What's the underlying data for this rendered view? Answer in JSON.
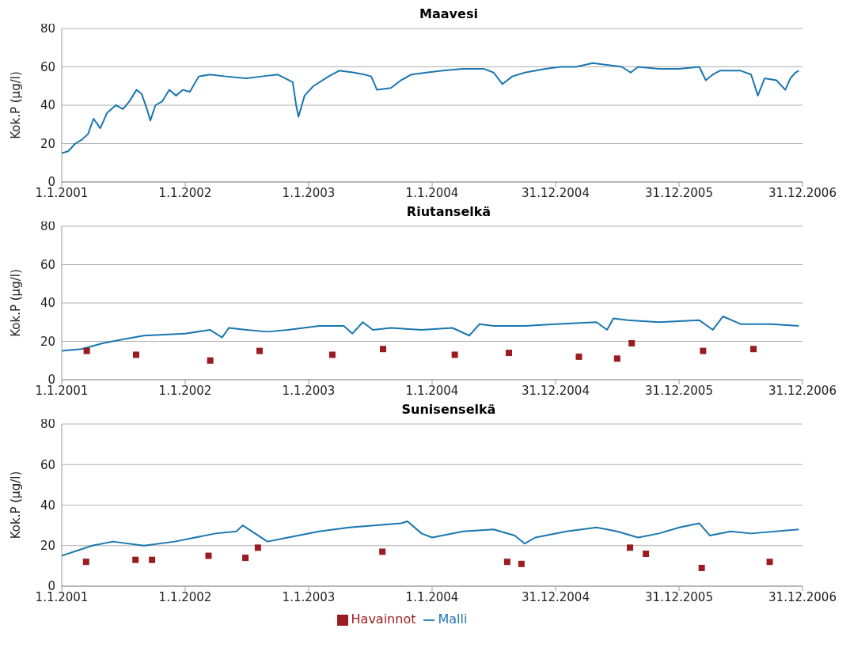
{
  "chart_data": [
    {
      "type": "line",
      "title": "Maavesi",
      "ylabel": "Kok.P (µg/l)",
      "xlim": [
        "2001-01-01",
        "2006-12-31"
      ],
      "xticks": [
        {
          "value": "2001-01-01",
          "label": "1.1.2001"
        },
        {
          "value": "2002-01-01",
          "label": "1.1.2002"
        },
        {
          "value": "2003-01-01",
          "label": "1.1.2003"
        },
        {
          "value": "2004-01-01",
          "label": "1.1.2004"
        },
        {
          "value": "2004-12-31",
          "label": "31.12.2004"
        },
        {
          "value": "2005-12-31",
          "label": "31.12.2005"
        },
        {
          "value": "2006-12-31",
          "label": "31.12.2006"
        }
      ],
      "ylim": [
        0,
        80
      ],
      "yticks": [
        0,
        20,
        40,
        60,
        80
      ],
      "grid": "y",
      "series": [
        {
          "color": "#1a76b0",
          "marker": "none",
          "x": [
            "2001-01-01",
            "2001-01-20",
            "2001-02-10",
            "2001-03-01",
            "2001-03-20",
            "2001-04-05",
            "2001-04-25",
            "2001-05-15",
            "2001-06-10",
            "2001-07-01",
            "2001-07-20",
            "2001-08-10",
            "2001-08-25",
            "2001-09-10",
            "2001-09-20",
            "2001-10-05",
            "2001-10-25",
            "2001-11-15",
            "2001-12-05",
            "2001-12-25",
            "2002-01-15",
            "2002-02-10",
            "2002-03-15",
            "2002-05-01",
            "2002-07-01",
            "2002-08-15",
            "2002-10-01",
            "2002-11-15",
            "2002-11-25",
            "2002-12-02",
            "2002-12-20",
            "2003-01-15",
            "2003-03-01",
            "2003-04-01",
            "2003-05-15",
            "2003-06-15",
            "2003-07-05",
            "2003-07-22",
            "2003-09-01",
            "2003-10-01",
            "2003-11-01",
            "2003-12-15",
            "2004-02-01",
            "2004-04-01",
            "2004-06-01",
            "2004-07-01",
            "2004-07-27",
            "2004-08-25",
            "2004-10-01",
            "2004-12-01",
            "2005-01-15",
            "2005-03-01",
            "2005-04-20",
            "2005-06-01",
            "2005-07-15",
            "2005-08-10",
            "2005-09-01",
            "2005-11-01",
            "2006-01-01",
            "2006-03-01",
            "2006-03-20",
            "2006-04-10",
            "2006-05-01",
            "2006-07-01",
            "2006-08-01",
            "2006-08-21",
            "2006-09-10",
            "2006-10-15",
            "2006-11-10",
            "2006-11-25",
            "2006-12-10",
            "2006-12-20"
          ],
          "values": [
            15,
            16,
            20,
            22,
            25,
            33,
            28,
            36,
            40,
            38,
            42,
            48,
            46,
            38,
            32,
            40,
            42,
            48,
            45,
            48,
            47,
            55,
            56,
            55,
            54,
            55,
            56,
            52,
            40,
            34,
            45,
            50,
            55,
            58,
            57,
            56,
            55,
            48,
            49,
            53,
            56,
            57,
            58,
            59,
            59,
            57,
            51,
            55,
            57,
            59,
            60,
            60,
            62,
            61,
            60,
            57,
            60,
            59,
            59,
            60,
            53,
            56,
            58,
            58,
            56,
            45,
            54,
            53,
            48,
            54,
            57,
            58
          ]
        }
      ]
    },
    {
      "type": "line",
      "title": "Riutanselkä",
      "ylabel": "Kok.P (µg/l)",
      "xlim": [
        "2001-01-01",
        "2006-12-31"
      ],
      "xticks": [
        {
          "value": "2001-01-01",
          "label": "1.1.2001"
        },
        {
          "value": "2002-01-01",
          "label": "1.1.2002"
        },
        {
          "value": "2003-01-01",
          "label": "1.1.2003"
        },
        {
          "value": "2004-01-01",
          "label": "1.1.2004"
        },
        {
          "value": "2004-12-31",
          "label": "31.12.2004"
        },
        {
          "value": "2005-12-31",
          "label": "31.12.2005"
        },
        {
          "value": "2006-12-31",
          "label": "31.12.2006"
        }
      ],
      "ylim": [
        0,
        80
      ],
      "yticks": [
        0,
        20,
        40,
        60,
        80
      ],
      "grid": "y",
      "series": [
        {
          "color": "#1a76b0",
          "marker": "none",
          "x": [
            "2001-01-01",
            "2001-03-01",
            "2001-05-01",
            "2001-07-01",
            "2001-09-01",
            "2002-01-01",
            "2002-03-15",
            "2002-04-20",
            "2002-05-10",
            "2002-07-01",
            "2002-09-01",
            "2002-11-01",
            "2003-02-01",
            "2003-04-15",
            "2003-05-10",
            "2003-06-10",
            "2003-07-10",
            "2003-09-01",
            "2003-12-01",
            "2004-03-01",
            "2004-04-20",
            "2004-05-20",
            "2004-07-01",
            "2004-10-01",
            "2005-01-01",
            "2005-05-01",
            "2005-06-01",
            "2005-06-20",
            "2005-08-01",
            "2005-11-01",
            "2006-03-01",
            "2006-04-10",
            "2006-05-10",
            "2006-07-01",
            "2006-10-01",
            "2006-12-20"
          ],
          "values": [
            15,
            16,
            19,
            21,
            23,
            24,
            26,
            22,
            27,
            26,
            25,
            26,
            28,
            28,
            24,
            30,
            26,
            27,
            26,
            27,
            23,
            29,
            28,
            28,
            29,
            30,
            26,
            32,
            31,
            30,
            31,
            26,
            33,
            29,
            29,
            28
          ]
        },
        {
          "type": "scatter",
          "color": "#9b1c20",
          "marker": "square",
          "x": [
            "2001-03-16",
            "2001-08-09",
            "2002-03-16",
            "2002-08-09",
            "2003-03-12",
            "2003-08-09",
            "2004-03-08",
            "2004-08-15",
            "2005-03-10",
            "2005-07-01",
            "2005-08-13",
            "2006-03-12",
            "2006-08-08"
          ],
          "values": [
            15,
            13,
            10,
            15,
            13,
            16,
            13,
            14,
            12,
            11,
            19,
            15,
            16
          ]
        }
      ]
    },
    {
      "type": "line",
      "title": "Sunisenselkä",
      "ylabel": "Kok.P (µg/l)",
      "xlim": [
        "2001-01-01",
        "2006-12-31"
      ],
      "xticks": [
        {
          "value": "2001-01-01",
          "label": "1.1.2001"
        },
        {
          "value": "2002-01-01",
          "label": "1.1.2002"
        },
        {
          "value": "2003-01-01",
          "label": "1.1.2003"
        },
        {
          "value": "2004-01-01",
          "label": "1.1.2004"
        },
        {
          "value": "2004-12-31",
          "label": "31.12.2004"
        },
        {
          "value": "2005-12-31",
          "label": "31.12.2005"
        },
        {
          "value": "2006-12-31",
          "label": "31.12.2006"
        }
      ],
      "ylim": [
        0,
        80
      ],
      "yticks": [
        0,
        20,
        40,
        60,
        80
      ],
      "grid": "y",
      "legend": "bottom",
      "series": [
        {
          "name": "Malli",
          "color": "#1a76b0",
          "marker": "none",
          "x": [
            "2001-01-01",
            "2001-04-01",
            "2001-06-01",
            "2001-09-01",
            "2001-12-01",
            "2002-04-01",
            "2002-06-01",
            "2002-06-20",
            "2002-09-01",
            "2002-11-01",
            "2003-02-01",
            "2003-05-01",
            "2003-10-01",
            "2003-10-20",
            "2003-12-01",
            "2004-01-01",
            "2004-04-01",
            "2004-07-01",
            "2004-09-01",
            "2004-10-01",
            "2004-11-01",
            "2005-02-01",
            "2005-05-01",
            "2005-07-01",
            "2005-09-01",
            "2005-11-01",
            "2006-01-01",
            "2006-03-01",
            "2006-04-01",
            "2006-06-01",
            "2006-08-01",
            "2006-12-20"
          ],
          "values": [
            15,
            20,
            22,
            20,
            22,
            26,
            27,
            30,
            22,
            24,
            27,
            29,
            31,
            32,
            26,
            24,
            27,
            28,
            25,
            21,
            24,
            27,
            29,
            27,
            24,
            26,
            29,
            31,
            25,
            27,
            26,
            28
          ]
        },
        {
          "type": "scatter",
          "name": "Havainnot",
          "color": "#9b1c20",
          "marker": "square",
          "x": [
            "2001-03-14",
            "2001-08-07",
            "2001-09-25",
            "2002-03-11",
            "2002-06-28",
            "2002-08-04",
            "2003-08-07",
            "2004-08-10",
            "2004-09-21",
            "2005-08-08",
            "2005-09-24",
            "2006-03-08",
            "2006-09-25"
          ],
          "values": [
            12,
            13,
            13,
            15,
            14,
            19,
            17,
            12,
            11,
            19,
            16,
            9,
            12
          ]
        }
      ]
    }
  ]
}
